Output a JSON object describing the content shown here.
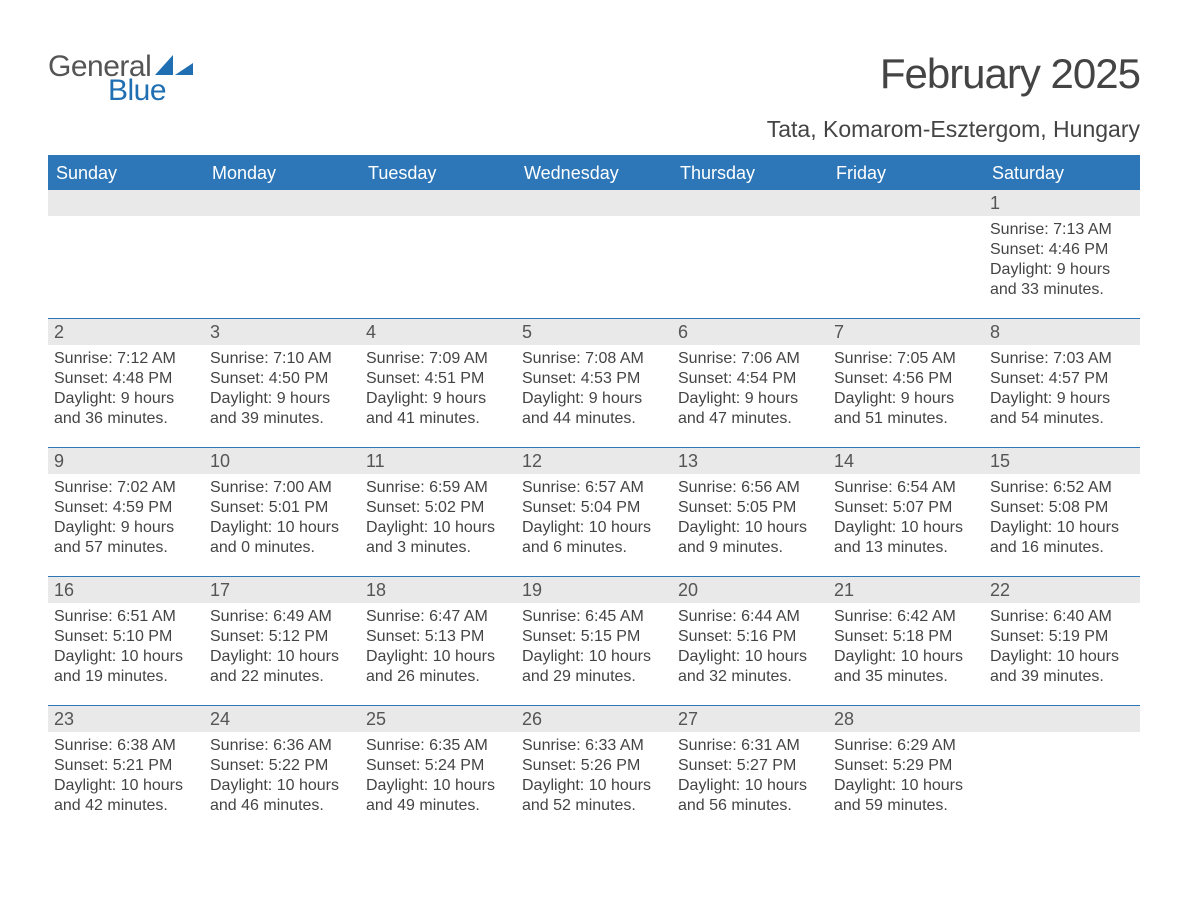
{
  "brand": {
    "word1": "General",
    "word2": "Blue",
    "icon_color": "#1f6fb2",
    "text_color_gray": "#555555",
    "text_color_blue": "#1f6fb2"
  },
  "title": "February 2025",
  "location": "Tata, Komarom-Esztergom, Hungary",
  "colors": {
    "header_bg": "#2d77b8",
    "header_text": "#ffffff",
    "daynum_bg": "#e9e9e9",
    "daynum_text": "#555555",
    "body_text": "#444444",
    "rule": "#2d77b8",
    "page_bg": "#ffffff"
  },
  "day_headers": [
    "Sunday",
    "Monday",
    "Tuesday",
    "Wednesday",
    "Thursday",
    "Friday",
    "Saturday"
  ],
  "weeks": [
    [
      {
        "n": "",
        "sunrise": "",
        "sunset": "",
        "daylight": ""
      },
      {
        "n": "",
        "sunrise": "",
        "sunset": "",
        "daylight": ""
      },
      {
        "n": "",
        "sunrise": "",
        "sunset": "",
        "daylight": ""
      },
      {
        "n": "",
        "sunrise": "",
        "sunset": "",
        "daylight": ""
      },
      {
        "n": "",
        "sunrise": "",
        "sunset": "",
        "daylight": ""
      },
      {
        "n": "",
        "sunrise": "",
        "sunset": "",
        "daylight": ""
      },
      {
        "n": "1",
        "sunrise": "Sunrise: 7:13 AM",
        "sunset": "Sunset: 4:46 PM",
        "daylight": "Daylight: 9 hours and 33 minutes."
      }
    ],
    [
      {
        "n": "2",
        "sunrise": "Sunrise: 7:12 AM",
        "sunset": "Sunset: 4:48 PM",
        "daylight": "Daylight: 9 hours and 36 minutes."
      },
      {
        "n": "3",
        "sunrise": "Sunrise: 7:10 AM",
        "sunset": "Sunset: 4:50 PM",
        "daylight": "Daylight: 9 hours and 39 minutes."
      },
      {
        "n": "4",
        "sunrise": "Sunrise: 7:09 AM",
        "sunset": "Sunset: 4:51 PM",
        "daylight": "Daylight: 9 hours and 41 minutes."
      },
      {
        "n": "5",
        "sunrise": "Sunrise: 7:08 AM",
        "sunset": "Sunset: 4:53 PM",
        "daylight": "Daylight: 9 hours and 44 minutes."
      },
      {
        "n": "6",
        "sunrise": "Sunrise: 7:06 AM",
        "sunset": "Sunset: 4:54 PM",
        "daylight": "Daylight: 9 hours and 47 minutes."
      },
      {
        "n": "7",
        "sunrise": "Sunrise: 7:05 AM",
        "sunset": "Sunset: 4:56 PM",
        "daylight": "Daylight: 9 hours and 51 minutes."
      },
      {
        "n": "8",
        "sunrise": "Sunrise: 7:03 AM",
        "sunset": "Sunset: 4:57 PM",
        "daylight": "Daylight: 9 hours and 54 minutes."
      }
    ],
    [
      {
        "n": "9",
        "sunrise": "Sunrise: 7:02 AM",
        "sunset": "Sunset: 4:59 PM",
        "daylight": "Daylight: 9 hours and 57 minutes."
      },
      {
        "n": "10",
        "sunrise": "Sunrise: 7:00 AM",
        "sunset": "Sunset: 5:01 PM",
        "daylight": "Daylight: 10 hours and 0 minutes."
      },
      {
        "n": "11",
        "sunrise": "Sunrise: 6:59 AM",
        "sunset": "Sunset: 5:02 PM",
        "daylight": "Daylight: 10 hours and 3 minutes."
      },
      {
        "n": "12",
        "sunrise": "Sunrise: 6:57 AM",
        "sunset": "Sunset: 5:04 PM",
        "daylight": "Daylight: 10 hours and 6 minutes."
      },
      {
        "n": "13",
        "sunrise": "Sunrise: 6:56 AM",
        "sunset": "Sunset: 5:05 PM",
        "daylight": "Daylight: 10 hours and 9 minutes."
      },
      {
        "n": "14",
        "sunrise": "Sunrise: 6:54 AM",
        "sunset": "Sunset: 5:07 PM",
        "daylight": "Daylight: 10 hours and 13 minutes."
      },
      {
        "n": "15",
        "sunrise": "Sunrise: 6:52 AM",
        "sunset": "Sunset: 5:08 PM",
        "daylight": "Daylight: 10 hours and 16 minutes."
      }
    ],
    [
      {
        "n": "16",
        "sunrise": "Sunrise: 6:51 AM",
        "sunset": "Sunset: 5:10 PM",
        "daylight": "Daylight: 10 hours and 19 minutes."
      },
      {
        "n": "17",
        "sunrise": "Sunrise: 6:49 AM",
        "sunset": "Sunset: 5:12 PM",
        "daylight": "Daylight: 10 hours and 22 minutes."
      },
      {
        "n": "18",
        "sunrise": "Sunrise: 6:47 AM",
        "sunset": "Sunset: 5:13 PM",
        "daylight": "Daylight: 10 hours and 26 minutes."
      },
      {
        "n": "19",
        "sunrise": "Sunrise: 6:45 AM",
        "sunset": "Sunset: 5:15 PM",
        "daylight": "Daylight: 10 hours and 29 minutes."
      },
      {
        "n": "20",
        "sunrise": "Sunrise: 6:44 AM",
        "sunset": "Sunset: 5:16 PM",
        "daylight": "Daylight: 10 hours and 32 minutes."
      },
      {
        "n": "21",
        "sunrise": "Sunrise: 6:42 AM",
        "sunset": "Sunset: 5:18 PM",
        "daylight": "Daylight: 10 hours and 35 minutes."
      },
      {
        "n": "22",
        "sunrise": "Sunrise: 6:40 AM",
        "sunset": "Sunset: 5:19 PM",
        "daylight": "Daylight: 10 hours and 39 minutes."
      }
    ],
    [
      {
        "n": "23",
        "sunrise": "Sunrise: 6:38 AM",
        "sunset": "Sunset: 5:21 PM",
        "daylight": "Daylight: 10 hours and 42 minutes."
      },
      {
        "n": "24",
        "sunrise": "Sunrise: 6:36 AM",
        "sunset": "Sunset: 5:22 PM",
        "daylight": "Daylight: 10 hours and 46 minutes."
      },
      {
        "n": "25",
        "sunrise": "Sunrise: 6:35 AM",
        "sunset": "Sunset: 5:24 PM",
        "daylight": "Daylight: 10 hours and 49 minutes."
      },
      {
        "n": "26",
        "sunrise": "Sunrise: 6:33 AM",
        "sunset": "Sunset: 5:26 PM",
        "daylight": "Daylight: 10 hours and 52 minutes."
      },
      {
        "n": "27",
        "sunrise": "Sunrise: 6:31 AM",
        "sunset": "Sunset: 5:27 PM",
        "daylight": "Daylight: 10 hours and 56 minutes."
      },
      {
        "n": "28",
        "sunrise": "Sunrise: 6:29 AM",
        "sunset": "Sunset: 5:29 PM",
        "daylight": "Daylight: 10 hours and 59 minutes."
      },
      {
        "n": "",
        "sunrise": "",
        "sunset": "",
        "daylight": ""
      }
    ]
  ]
}
